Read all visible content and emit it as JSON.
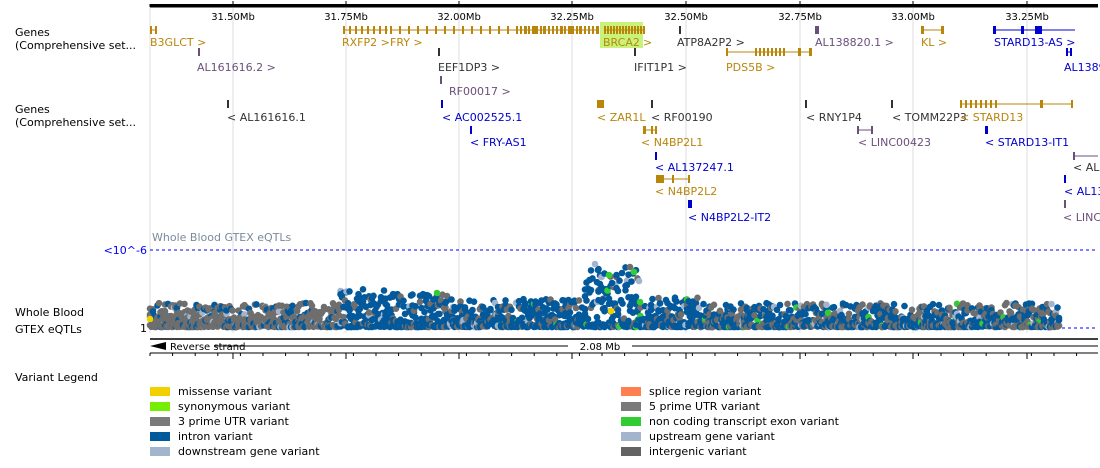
{
  "tracks": {
    "genes_forward": {
      "line1": "Genes",
      "line2": "(Comprehensive set..."
    },
    "genes_reverse": {
      "line1": "Genes",
      "line2": "(Comprehensive set..."
    },
    "eqtl": {
      "line1": "Whole Blood",
      "line2": "GTEX eQTLs",
      "title": "Whole Blood GTEX eQTLs",
      "threshold": "<10^-6",
      "baseline": "1"
    }
  },
  "axis": {
    "ticks": [
      "31.50Mb",
      "31.75Mb",
      "32.00Mb",
      "32.25Mb",
      "32.50Mb",
      "32.75Mb",
      "33.00Mb",
      "33.25Mb"
    ],
    "strand_label": "Reverse strand",
    "region_length": "2.08 Mb"
  },
  "genes_forward_labels": [
    {
      "text": "B3GLCT >",
      "color": "#b8860b"
    },
    {
      "text": "RXFP2 >",
      "color": "#b8860b"
    },
    {
      "text": "FRY >",
      "color": "#b8860b"
    },
    {
      "text": "BRCA2",
      "color": "#b8860b"
    },
    {
      "text": ">",
      "color": "#b8860b"
    },
    {
      "text": "ATP8A2P2 >",
      "color": "#333333"
    },
    {
      "text": "AL138820.1 >",
      "color": "#6b4f7b"
    },
    {
      "text": "KL >",
      "color": "#b8860b"
    },
    {
      "text": "STARD13-AS >",
      "color": "#0000cc"
    },
    {
      "text": "AL161616.2 >",
      "color": "#6b4f7b"
    },
    {
      "text": "EEF1DP3 >",
      "color": "#333333"
    },
    {
      "text": "IFIT1P1 >",
      "color": "#333333"
    },
    {
      "text": "PDS5B >",
      "color": "#b8860b"
    },
    {
      "text": "AL1389",
      "color": "#0000cc"
    },
    {
      "text": "RF00017 >",
      "color": "#6b4f7b"
    }
  ],
  "genes_reverse_labels": [
    {
      "text": "< AL161616.1",
      "color": "#333333"
    },
    {
      "text": "< AC002525.1",
      "color": "#0000cc"
    },
    {
      "text": "< FRY-AS1",
      "color": "#0000cc"
    },
    {
      "text": "< ZAR1L",
      "color": "#b8860b"
    },
    {
      "text": "< RF00190",
      "color": "#333333"
    },
    {
      "text": "< N4BP2L1",
      "color": "#b8860b"
    },
    {
      "text": "< AL137247.1",
      "color": "#0000cc"
    },
    {
      "text": "< N4BP2L2",
      "color": "#b8860b"
    },
    {
      "text": "< N4BP2L2-IT2",
      "color": "#0000cc"
    },
    {
      "text": "< RNY1P4",
      "color": "#333333"
    },
    {
      "text": "< LINC00423",
      "color": "#6b4f7b"
    },
    {
      "text": "< TOMM22P3",
      "color": "#333333"
    },
    {
      "text": "< STARD13",
      "color": "#b8860b"
    },
    {
      "text": "< STARD13-IT1",
      "color": "#0000cc"
    },
    {
      "text": "< AL",
      "color": "#333333"
    },
    {
      "text": "< AL13",
      "color": "#0000cc"
    },
    {
      "text": "< LINC",
      "color": "#6b4f7b"
    }
  ],
  "legend": {
    "title": "Variant Legend",
    "items": [
      {
        "label": "missense variant",
        "color": "#f2d000"
      },
      {
        "label": "synonymous variant",
        "color": "#76ee00"
      },
      {
        "label": "3 prime UTR variant",
        "color": "#7a7a7a"
      },
      {
        "label": "intron variant",
        "color": "#02599c"
      },
      {
        "label": "downstream gene variant",
        "color": "#a2b5cd"
      },
      {
        "label": "splice region variant",
        "color": "#ff7f50"
      },
      {
        "label": "5 prime UTR variant",
        "color": "#7a7a7a"
      },
      {
        "label": "non coding transcript exon variant",
        "color": "#32cd32"
      },
      {
        "label": "upstream gene variant",
        "color": "#a2b5cd"
      },
      {
        "label": "intergenic variant",
        "color": "#636363"
      }
    ]
  },
  "colors": {
    "gene_protein": "#b8860b",
    "gene_ncrna": "#0000cc",
    "gene_pseudo": "#6b4f7b",
    "highlight": "#c9f27a",
    "threshold": "#0000ff",
    "gridline": "#dddddd"
  }
}
